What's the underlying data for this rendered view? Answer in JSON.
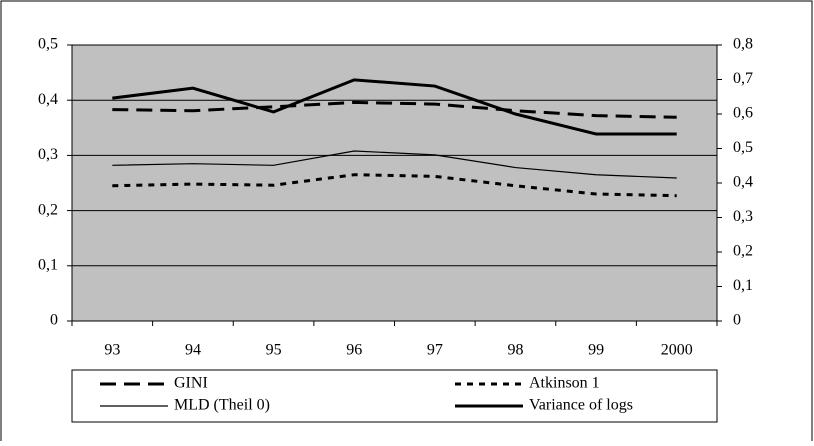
{
  "chart_data": {
    "type": "line",
    "categories": [
      "93",
      "94",
      "95",
      "96",
      "97",
      "98",
      "99",
      "2000"
    ],
    "ylim": [
      0,
      0.5
    ],
    "yticks": [
      0,
      {
        "value": 0.1,
        "label": "0,1"
      },
      {
        "value": 0.2,
        "label": "0,2"
      },
      {
        "value": 0.3,
        "label": "0,3"
      },
      {
        "value": 0.4,
        "label": "0,4"
      },
      {
        "value": 0.5,
        "label": "0,5"
      }
    ],
    "y2lim": [
      0,
      0.8
    ],
    "y2ticks": [
      0,
      {
        "value": 0.1,
        "label": "0,1"
      },
      {
        "value": 0.2,
        "label": "0,2"
      },
      {
        "value": 0.3,
        "label": "0,3"
      },
      {
        "value": 0.4,
        "label": "0,4"
      },
      {
        "value": 0.5,
        "label": "0,5"
      },
      {
        "value": 0.6,
        "label": "0,6"
      },
      {
        "value": 0.7,
        "label": "0,7"
      },
      {
        "value": 0.8,
        "label": "0,8"
      }
    ],
    "grid": true,
    "legend": "bottom",
    "series": [
      {
        "name": "GINI",
        "color": "#000000",
        "style": "dashed",
        "values": [
          0.383,
          0.381,
          0.388,
          0.396,
          0.393,
          0.381,
          0.372,
          0.369
        ]
      },
      {
        "name": "Atkinson 1",
        "color": "#000000",
        "style": "dotted",
        "values": [
          0.245,
          0.248,
          0.246,
          0.265,
          0.262,
          0.245,
          0.23,
          0.227
        ]
      },
      {
        "name": "MLD (Theil 0)",
        "color": "#000000",
        "style": "thin",
        "values": [
          0.282,
          0.285,
          0.282,
          0.308,
          0.301,
          0.278,
          0.265,
          0.259
        ]
      },
      {
        "name": "Variance of logs",
        "color": "#000000",
        "style": "solid",
        "axis": "y2",
        "values": [
          0.646,
          0.675,
          0.606,
          0.699,
          0.681,
          0.6,
          0.542,
          0.542
        ]
      }
    ]
  }
}
